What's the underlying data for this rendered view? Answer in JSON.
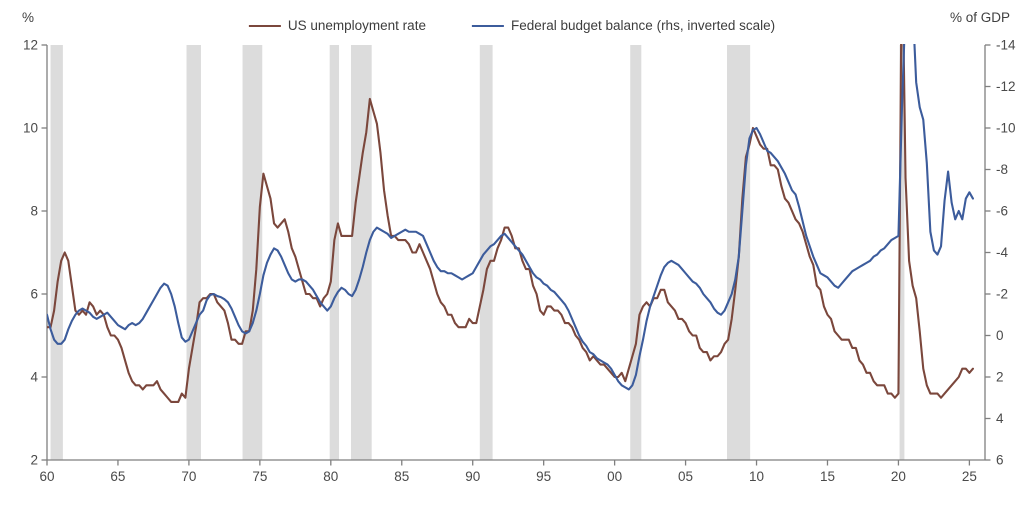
{
  "page": {
    "background": "#FFFFFF"
  },
  "axes_units": {
    "left": "%",
    "right": "% of GDP"
  },
  "chart_data": {
    "type": "line",
    "title": "",
    "x_axis": {
      "min": 1960,
      "max": 2026.1,
      "tick_years": [
        1960,
        1965,
        1970,
        1975,
        1980,
        1985,
        1990,
        1995,
        2000,
        2005,
        2010,
        2015,
        2020,
        2025
      ],
      "tick_labels": [
        "60",
        "65",
        "70",
        "75",
        "80",
        "85",
        "90",
        "95",
        "00",
        "05",
        "10",
        "15",
        "20",
        "25"
      ]
    },
    "left_axis": {
      "unit": "%",
      "min": 2,
      "max": 12,
      "ticks": [
        12,
        10,
        8,
        6,
        4,
        2
      ]
    },
    "right_axis": {
      "unit": "% of GDP",
      "top": -14,
      "bottom": 6,
      "inverted": true,
      "ticks": [
        -14,
        -12,
        -10,
        -8,
        -6,
        -4,
        -2,
        0,
        2,
        4,
        6
      ]
    },
    "recession_bands_years": [
      [
        1960.25,
        1961.12
      ],
      [
        1969.83,
        1970.85
      ],
      [
        1973.78,
        1975.17
      ],
      [
        1979.92,
        1980.58
      ],
      [
        1981.42,
        1982.88
      ],
      [
        1990.5,
        1991.4
      ],
      [
        2001.1,
        2001.88
      ],
      [
        2007.92,
        2009.55
      ],
      [
        2020.08,
        2020.42
      ]
    ],
    "recession_color": "#DCDCDC",
    "axis_color": "#7F7F7F",
    "label_color": "#4A4A4A",
    "series": [
      {
        "name": "US unemployment rate",
        "axis": "left",
        "color": "#7B473C",
        "start": 1960,
        "step": 0.25,
        "values": [
          5.2,
          5.2,
          5.6,
          6.3,
          6.8,
          7.0,
          6.8,
          6.2,
          5.6,
          5.5,
          5.6,
          5.5,
          5.8,
          5.7,
          5.5,
          5.6,
          5.5,
          5.2,
          5.0,
          5.0,
          4.9,
          4.7,
          4.4,
          4.1,
          3.9,
          3.8,
          3.8,
          3.7,
          3.8,
          3.8,
          3.8,
          3.9,
          3.7,
          3.6,
          3.5,
          3.4,
          3.4,
          3.4,
          3.6,
          3.5,
          4.2,
          4.7,
          5.2,
          5.8,
          5.9,
          5.9,
          6.0,
          6.0,
          5.8,
          5.7,
          5.6,
          5.3,
          4.9,
          4.9,
          4.8,
          4.8,
          5.1,
          5.1,
          5.6,
          6.6,
          8.1,
          8.9,
          8.6,
          8.3,
          7.7,
          7.6,
          7.7,
          7.8,
          7.5,
          7.1,
          6.9,
          6.6,
          6.3,
          6.0,
          6.0,
          5.9,
          5.9,
          5.7,
          5.9,
          6.0,
          6.3,
          7.3,
          7.7,
          7.4,
          7.4,
          7.4,
          7.4,
          8.2,
          8.8,
          9.4,
          9.9,
          10.7,
          10.4,
          10.1,
          9.4,
          8.5,
          7.9,
          7.4,
          7.4,
          7.3,
          7.3,
          7.3,
          7.2,
          7.0,
          7.0,
          7.2,
          7.0,
          6.8,
          6.6,
          6.3,
          6.0,
          5.8,
          5.7,
          5.5,
          5.5,
          5.3,
          5.2,
          5.2,
          5.2,
          5.4,
          5.3,
          5.3,
          5.7,
          6.1,
          6.6,
          6.8,
          6.8,
          7.1,
          7.3,
          7.6,
          7.6,
          7.4,
          7.1,
          7.1,
          6.8,
          6.6,
          6.6,
          6.2,
          6.0,
          5.6,
          5.5,
          5.7,
          5.7,
          5.6,
          5.6,
          5.5,
          5.3,
          5.3,
          5.2,
          5.0,
          4.9,
          4.7,
          4.6,
          4.4,
          4.5,
          4.4,
          4.3,
          4.3,
          4.2,
          4.1,
          4.0,
          4.0,
          4.1,
          3.9,
          4.2,
          4.5,
          4.8,
          5.5,
          5.7,
          5.8,
          5.7,
          5.9,
          5.9,
          6.1,
          6.1,
          5.8,
          5.7,
          5.6,
          5.4,
          5.4,
          5.3,
          5.1,
          5.0,
          5.0,
          4.7,
          4.6,
          4.6,
          4.4,
          4.5,
          4.5,
          4.6,
          4.8,
          4.9,
          5.4,
          6.1,
          6.9,
          8.3,
          9.3,
          9.6,
          10.0,
          9.8,
          9.6,
          9.5,
          9.5,
          9.1,
          9.1,
          9.0,
          8.6,
          8.3,
          8.2,
          8.0,
          7.8,
          7.7,
          7.5,
          7.2,
          6.9,
          6.7,
          6.2,
          6.1,
          5.7,
          5.5,
          5.4,
          5.1,
          5.0,
          4.9,
          4.9,
          4.9,
          4.7,
          4.7,
          4.4,
          4.3,
          4.1,
          4.1,
          3.9,
          3.8,
          3.8,
          3.8,
          3.6,
          3.6,
          3.5,
          3.6,
          14.7,
          8.8,
          6.8,
          6.2,
          5.9,
          5.1,
          4.2,
          3.8,
          3.6,
          3.6,
          3.6,
          3.5,
          3.6,
          3.7,
          3.8,
          3.9,
          4.0,
          4.2,
          4.2,
          4.1,
          4.2
        ]
      },
      {
        "name": "Federal budget balance (rhs, inverted scale)",
        "axis": "right",
        "color": "#3C5C9C",
        "start": 1960,
        "step": 0.25,
        "values": [
          -1.0,
          -0.3,
          0.2,
          0.4,
          0.4,
          0.2,
          -0.3,
          -0.7,
          -1.0,
          -1.2,
          -1.3,
          -1.2,
          -1.1,
          -0.9,
          -0.8,
          -0.9,
          -1.0,
          -1.1,
          -0.9,
          -0.7,
          -0.5,
          -0.4,
          -0.3,
          -0.5,
          -0.6,
          -0.5,
          -0.6,
          -0.8,
          -1.1,
          -1.4,
          -1.7,
          -2.0,
          -2.3,
          -2.5,
          -2.4,
          -2.0,
          -1.4,
          -0.6,
          0.1,
          0.3,
          0.2,
          -0.2,
          -0.6,
          -1.0,
          -1.2,
          -1.7,
          -1.95,
          -2.0,
          -1.9,
          -1.85,
          -1.75,
          -1.6,
          -1.3,
          -0.9,
          -0.5,
          -0.2,
          -0.1,
          -0.2,
          -0.6,
          -1.2,
          -2.0,
          -2.9,
          -3.5,
          -3.9,
          -4.2,
          -4.1,
          -3.8,
          -3.4,
          -3.0,
          -2.7,
          -2.6,
          -2.7,
          -2.7,
          -2.6,
          -2.4,
          -2.2,
          -1.9,
          -1.6,
          -1.4,
          -1.2,
          -1.4,
          -1.8,
          -2.1,
          -2.3,
          -2.2,
          -2.0,
          -1.9,
          -2.2,
          -2.7,
          -3.3,
          -4.0,
          -4.6,
          -5.0,
          -5.2,
          -5.1,
          -5.0,
          -4.9,
          -4.7,
          -4.8,
          -4.9,
          -5.0,
          -5.1,
          -5.0,
          -5.0,
          -5.0,
          -4.9,
          -4.8,
          -4.4,
          -4.0,
          -3.6,
          -3.3,
          -3.1,
          -3.1,
          -3.0,
          -3.0,
          -2.9,
          -2.8,
          -2.7,
          -2.8,
          -2.9,
          -3.0,
          -3.3,
          -3.6,
          -3.9,
          -4.1,
          -4.3,
          -4.4,
          -4.6,
          -4.8,
          -4.9,
          -4.7,
          -4.5,
          -4.3,
          -4.1,
          -3.9,
          -3.6,
          -3.3,
          -3.0,
          -2.8,
          -2.7,
          -2.5,
          -2.4,
          -2.2,
          -2.1,
          -1.9,
          -1.7,
          -1.5,
          -1.2,
          -0.8,
          -0.4,
          0.0,
          0.3,
          0.5,
          0.8,
          0.9,
          1.1,
          1.2,
          1.3,
          1.4,
          1.6,
          1.9,
          2.2,
          2.4,
          2.5,
          2.6,
          2.4,
          1.9,
          1.0,
          0.2,
          -0.7,
          -1.4,
          -1.9,
          -2.4,
          -2.9,
          -3.3,
          -3.5,
          -3.6,
          -3.5,
          -3.4,
          -3.2,
          -3.0,
          -2.8,
          -2.6,
          -2.5,
          -2.3,
          -2.0,
          -1.8,
          -1.6,
          -1.3,
          -1.1,
          -1.0,
          -1.2,
          -1.6,
          -2.0,
          -2.7,
          -3.8,
          -6.0,
          -8.2,
          -9.5,
          -9.9,
          -10.0,
          -9.7,
          -9.3,
          -8.9,
          -8.8,
          -8.6,
          -8.4,
          -8.1,
          -7.8,
          -7.4,
          -7.0,
          -6.8,
          -6.2,
          -5.5,
          -4.8,
          -4.3,
          -3.8,
          -3.4,
          -3.0,
          -2.9,
          -2.8,
          -2.6,
          -2.4,
          -2.3,
          -2.5,
          -2.7,
          -2.9,
          -3.1,
          -3.2,
          -3.3,
          -3.4,
          -3.5,
          -3.6,
          -3.8,
          -3.9,
          -4.1,
          -4.2,
          -4.4,
          -4.6,
          -4.7,
          -4.8,
          -11.0,
          -16.0,
          -16.3,
          -16.0,
          -12.2,
          -11.0,
          -10.4,
          -8.3,
          -5.0,
          -4.1,
          -3.9,
          -4.3,
          -6.5,
          -7.9,
          -6.4,
          -5.6,
          -6.0,
          -5.6,
          -6.6,
          -6.9,
          -6.6
        ]
      }
    ]
  }
}
